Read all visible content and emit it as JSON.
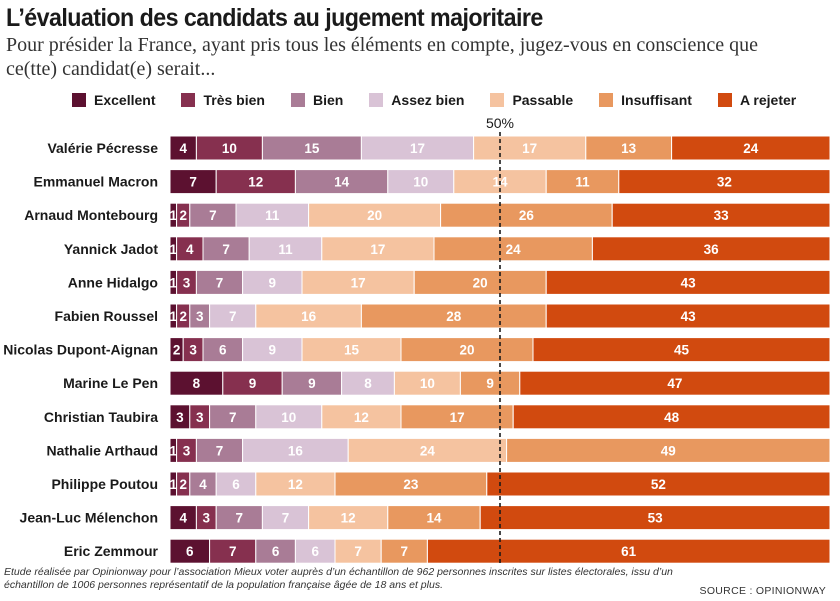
{
  "header": {
    "title": "L’évaluation des candidats au jugement majoritaire",
    "subtitle": "Pour présider la France, ayant pris tous les éléments en compte, jugez-vous en conscience que ce(tte) candidat(e) serait..."
  },
  "chart_data": {
    "type": "bar",
    "stacked": true,
    "orientation": "horizontal",
    "normalized_to": 100,
    "title": "L’évaluation des candidats au jugement majoritaire",
    "reference_line": {
      "value": 50,
      "label": "50%",
      "style": "dashed"
    },
    "legend_position": "top",
    "categories": [
      "Valérie Pécresse",
      "Emmanuel Macron",
      "Arnaud Montebourg",
      "Yannick Jadot",
      "Anne Hidalgo",
      "Fabien Roussel",
      "Nicolas Dupont-Aignan",
      "Marine Le Pen",
      "Christian Taubira",
      "Nathalie Arthaud",
      "Philippe Poutou",
      "Jean-Luc Mélenchon",
      "Eric Zemmour"
    ],
    "series": [
      {
        "name": "Excellent",
        "color": "#5c1130",
        "values": [
          4,
          7,
          1,
          1,
          1,
          1,
          2,
          8,
          3,
          1,
          1,
          4,
          6
        ]
      },
      {
        "name": "Très bien",
        "color": "#86304f",
        "values": [
          10,
          12,
          2,
          4,
          3,
          2,
          3,
          9,
          3,
          3,
          2,
          3,
          7
        ]
      },
      {
        "name": "Bien",
        "color": "#a97c96",
        "values": [
          15,
          14,
          7,
          7,
          7,
          3,
          6,
          9,
          7,
          7,
          4,
          7,
          6
        ]
      },
      {
        "name": "Assez bien",
        "color": "#d9c3d6",
        "values": [
          17,
          10,
          11,
          11,
          9,
          7,
          9,
          8,
          10,
          16,
          6,
          7,
          6
        ]
      },
      {
        "name": "Passable",
        "color": "#f5c3a0",
        "values": [
          17,
          14,
          20,
          17,
          17,
          16,
          15,
          10,
          12,
          24,
          12,
          12,
          7
        ]
      },
      {
        "name": "Insuffisant",
        "color": "#e8985f",
        "values": [
          13,
          11,
          26,
          24,
          20,
          28,
          20,
          9,
          17,
          49,
          23,
          14,
          7
        ]
      },
      {
        "name": "A rejeter",
        "color": "#d14a0f",
        "values": [
          24,
          32,
          33,
          36,
          43,
          43,
          45,
          47,
          48,
          0,
          52,
          53,
          61
        ]
      }
    ],
    "label_colors": {
      "Excellent": "#ffffff",
      "Très bien": "#ffffff",
      "Bien": "#ffffff",
      "Assez bien": "#ffffff",
      "Passable": "#ffffff",
      "Insuffisant": "#ffffff",
      "A rejeter": "#ffffff"
    }
  },
  "footer": {
    "note": "Etude réalisée par Opinionway pour l’association Mieux voter auprès d’un échantillon de 962 personnes inscrites sur listes électorales, issu d’un échantillon de 1006 personnes représentatif de la population française âgée de 18 ans et plus.",
    "source": "SOURCE : OPINIONWAY"
  }
}
